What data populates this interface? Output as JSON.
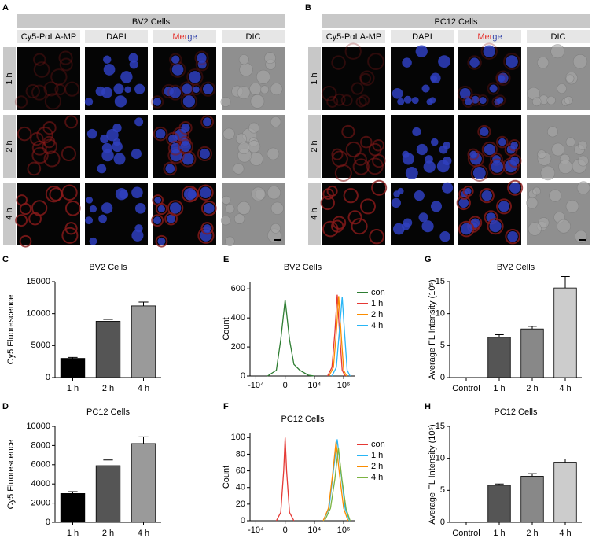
{
  "panels": [
    {
      "letter": "A",
      "title": "BV2 Cells",
      "columns": [
        "Cy5-PαLA-MP",
        "DAPI",
        [
          "Mer",
          "ge"
        ],
        "DIC"
      ],
      "rows": [
        "1 h",
        "2 h",
        "4 h"
      ]
    },
    {
      "letter": "B",
      "title": "PC12 Cells",
      "columns": [
        "Cy5-PαLA-MP",
        "DAPI",
        [
          "Mer",
          "ge"
        ],
        "DIC"
      ],
      "rows": [
        "1 h",
        "2 h",
        "4 h"
      ]
    }
  ],
  "chart_data": [
    {
      "type": "bar",
      "panel_label": "C",
      "title": "BV2 Cells",
      "y_label": "Cy5 Fluorescence",
      "categories": [
        "1 h",
        "2 h",
        "4 h"
      ],
      "values": [
        3000,
        8800,
        11200
      ],
      "errors": [
        150,
        300,
        600
      ],
      "colors": [
        "#000000",
        "#555555",
        "#9a9a9a"
      ],
      "ylim": [
        0,
        15000
      ],
      "yticks": [
        0,
        5000,
        10000,
        15000
      ]
    },
    {
      "type": "bar",
      "panel_label": "D",
      "title": "PC12 Cells",
      "y_label": "Cy5 Fluorescence",
      "categories": [
        "1 h",
        "2 h",
        "4 h"
      ],
      "values": [
        3000,
        5900,
        8200
      ],
      "errors": [
        200,
        600,
        700
      ],
      "colors": [
        "#000000",
        "#555555",
        "#9a9a9a"
      ],
      "ylim": [
        0,
        10000
      ],
      "yticks": [
        0,
        2000,
        4000,
        6000,
        8000,
        10000
      ]
    },
    {
      "type": "line",
      "panel_label": "E",
      "title": "BV2 Cells",
      "y_label": "Count",
      "xlim": [
        -1.2,
        2.4
      ],
      "xticks": [
        {
          "value": -1,
          "label": "-10⁴"
        },
        0,
        {
          "value": 1,
          "label": "10⁴"
        },
        {
          "value": 2,
          "label": "10⁶"
        }
      ],
      "ylim": [
        0,
        650
      ],
      "yticks": [
        0,
        200,
        400,
        600
      ],
      "series": [
        {
          "name": "con",
          "color": "#2e7d32",
          "x": [
            -0.6,
            -0.3,
            -0.15,
            0,
            0.15,
            0.3,
            0.5,
            0.8,
            1.0
          ],
          "values": [
            0,
            40,
            250,
            525,
            250,
            80,
            40,
            5,
            0
          ]
        },
        {
          "name": "1 h",
          "color": "#e53935",
          "x": [
            1.45,
            1.6,
            1.7,
            1.78,
            1.86,
            1.95,
            2.05
          ],
          "values": [
            0,
            60,
            300,
            560,
            300,
            40,
            0
          ]
        },
        {
          "name": "2 h",
          "color": "#fb8c00",
          "x": [
            1.5,
            1.65,
            1.75,
            1.83,
            1.91,
            2.0,
            2.1
          ],
          "values": [
            0,
            60,
            300,
            550,
            300,
            40,
            0
          ]
        },
        {
          "name": "4 h",
          "color": "#29b6f6",
          "x": [
            1.6,
            1.75,
            1.85,
            1.95,
            2.03,
            2.12,
            2.22
          ],
          "values": [
            0,
            60,
            300,
            545,
            300,
            40,
            0
          ]
        }
      ]
    },
    {
      "type": "line",
      "panel_label": "F",
      "title": "PC12 Cells",
      "y_label": "Count",
      "xlim": [
        -1.2,
        2.4
      ],
      "xticks": [
        {
          "value": -1,
          "label": "-10⁴"
        },
        0,
        {
          "value": 1,
          "label": "10⁴"
        },
        {
          "value": 2,
          "label": "10⁶"
        }
      ],
      "ylim": [
        0,
        105
      ],
      "yticks": [
        0,
        20,
        40,
        60,
        80,
        100
      ],
      "series": [
        {
          "name": "con",
          "color": "#e53935",
          "x": [
            -0.3,
            -0.15,
            -0.05,
            0,
            0.05,
            0.15,
            0.3
          ],
          "values": [
            0,
            10,
            60,
            100,
            60,
            10,
            0
          ]
        },
        {
          "name": "1 h",
          "color": "#29b6f6",
          "x": [
            1.3,
            1.5,
            1.65,
            1.78,
            1.9,
            2.05,
            2.2
          ],
          "values": [
            0,
            15,
            60,
            98,
            60,
            15,
            0
          ]
        },
        {
          "name": "2 h",
          "color": "#fb8c00",
          "x": [
            1.3,
            1.48,
            1.62,
            1.74,
            1.86,
            2.0,
            2.15
          ],
          "values": [
            0,
            15,
            55,
            95,
            55,
            15,
            0
          ]
        },
        {
          "name": "4 h",
          "color": "#7cb342",
          "x": [
            1.35,
            1.55,
            1.7,
            1.82,
            1.94,
            2.08,
            2.22
          ],
          "values": [
            0,
            15,
            50,
            88,
            50,
            15,
            0
          ]
        }
      ]
    },
    {
      "type": "bar",
      "panel_label": "G",
      "title": "BV2 Cells",
      "y_label": "Average FL Intensity (10⁵)",
      "categories": [
        "Control",
        "1 h",
        "2 h",
        "4 h"
      ],
      "values": [
        0,
        6.3,
        7.6,
        14
      ],
      "errors": [
        0,
        0.4,
        0.4,
        1.8
      ],
      "colors": [
        "#cccccc",
        "#555555",
        "#888888",
        "#cccccc"
      ],
      "ylim": [
        0,
        15
      ],
      "yticks": [
        0,
        5,
        10,
        15
      ]
    },
    {
      "type": "bar",
      "panel_label": "H",
      "title": "PC12 Cells",
      "y_label": "Average FL Intensity (10⁵)",
      "categories": [
        "Control",
        "1 h",
        "2 h",
        "4 h"
      ],
      "values": [
        0,
        5.8,
        7.2,
        9.4
      ],
      "errors": [
        0,
        0.2,
        0.4,
        0.5
      ],
      "colors": [
        "#cccccc",
        "#555555",
        "#888888",
        "#cccccc"
      ],
      "ylim": [
        0,
        15
      ],
      "yticks": [
        0,
        5,
        10,
        15
      ]
    }
  ]
}
